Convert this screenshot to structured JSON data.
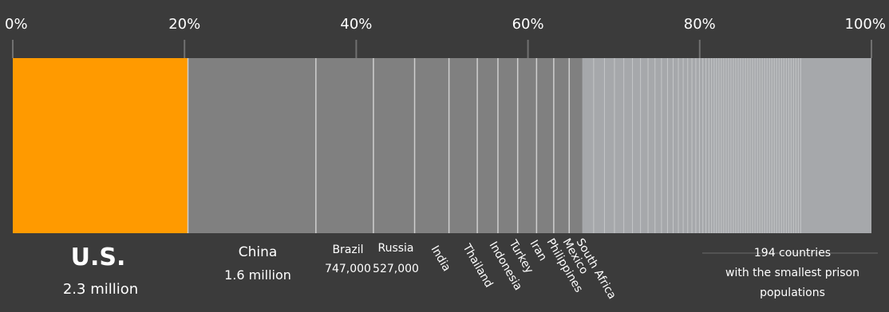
{
  "chart_data": {
    "type": "bar",
    "subtype": "stacked-100-percent",
    "axis": {
      "ticks": [
        "0%",
        "20%",
        "40%",
        "60%",
        "80%",
        "100%"
      ],
      "tick_values": [
        0,
        20,
        40,
        60,
        80,
        100
      ],
      "range": [
        0,
        100
      ]
    },
    "colors": {
      "background": "#3b3b3b",
      "highlight": "#ff9a00",
      "main": "#808080",
      "rest": "#a6a8ab",
      "divider": "#cfcfcf",
      "text": "#ffffff"
    },
    "segments": [
      {
        "name": "U.S.",
        "value_label": "2.3 million",
        "start": 0,
        "end": 20.4,
        "highlight": true
      },
      {
        "name": "China",
        "value_label": "1.6 million",
        "start": 20.4,
        "end": 35.3
      },
      {
        "name": "Brazil",
        "value_label": "747,000",
        "start": 35.3,
        "end": 42.0
      },
      {
        "name": "Russia",
        "value_label": "527,000",
        "start": 42.0,
        "end": 46.8
      },
      {
        "name": "India",
        "value_label": "",
        "start": 46.8,
        "end": 50.8
      },
      {
        "name": "Thailand",
        "value_label": "",
        "start": 50.8,
        "end": 54.1
      },
      {
        "name": "Indonesia",
        "value_label": "",
        "start": 54.1,
        "end": 56.5
      },
      {
        "name": "Turkey",
        "value_label": "",
        "start": 56.5,
        "end": 58.8
      },
      {
        "name": "Iran",
        "value_label": "",
        "start": 58.8,
        "end": 61.0
      },
      {
        "name": "Philippines",
        "value_label": "",
        "start": 61.0,
        "end": 63.0
      },
      {
        "name": "Mexico",
        "value_label": "",
        "start": 63.0,
        "end": 64.8
      },
      {
        "name": "South Africa",
        "value_label": "",
        "start": 64.8,
        "end": 66.3
      }
    ],
    "rest_region": {
      "start": 66.3,
      "end": 100,
      "label": [
        "194 countries",
        "with the smallest prison",
        "populations"
      ]
    }
  }
}
